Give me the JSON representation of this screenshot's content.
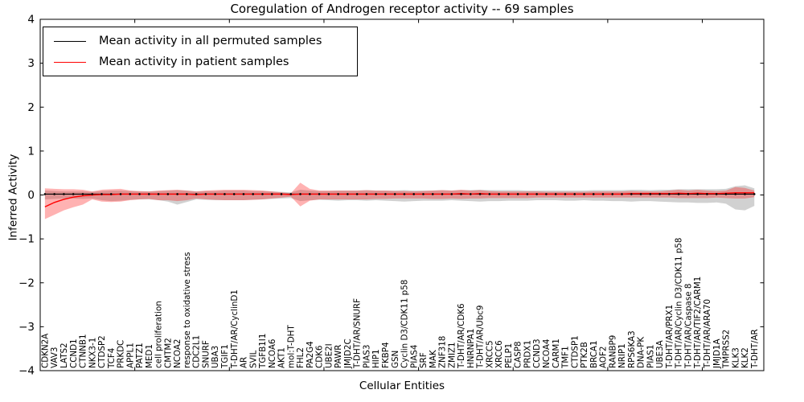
{
  "title": "Coregulation of Androgen receptor activity -- 69 samples",
  "axes": {
    "xlabel": "Cellular Entities",
    "ylabel": "Inferred Activity",
    "yticklabels": [
      "4",
      "3",
      "2",
      "1",
      "0",
      "−1",
      "−2",
      "−3",
      "−4"
    ]
  },
  "legend": {
    "items": [
      {
        "label": "Mean activity in all permuted samples",
        "color": "#000000"
      },
      {
        "label": "Mean activity in patient samples",
        "color": "#ff0000"
      }
    ]
  },
  "chart_data": {
    "type": "line",
    "title": "Coregulation of Androgen receptor activity -- 69 samples",
    "xlabel": "Cellular Entities",
    "ylabel": "Inferred Activity",
    "ylim": [
      -4,
      4
    ],
    "yticks": [
      4,
      3,
      2,
      1,
      0,
      -1,
      -2,
      -3,
      -4
    ],
    "xticks": [
      10,
      20,
      30,
      40,
      50,
      60,
      70
    ],
    "xmax": 76.5,
    "grid": false,
    "legend_position": "upper left",
    "categories": [
      "CDKN2A",
      "VAV3",
      "LATS2",
      "CCND1",
      "CTNNB1",
      "NKX3-1",
      "CTDSP2",
      "TCF4",
      "PRKDC",
      "APPL1",
      "PATZ1",
      "MED1",
      "cell proliferation",
      "CMTM2",
      "NCOA2",
      "response to oxidative stress",
      "CDC2L1",
      "SNURF",
      "UBA3",
      "TGIF1",
      "T-DHT/AR/CyclinD1",
      "AR",
      "SVIL",
      "TGFB1I1",
      "NCOA6",
      "AKT1",
      "mol:T-DHT",
      "FHL2",
      "PA2G4",
      "CDK6",
      "UBE2I",
      "PAWR",
      "JMJD2C",
      "T-DHT/AR/SNURF",
      "PIAS3",
      "HIP1",
      "FKBP4",
      "GSN",
      "Cyclin D3/CDK11 p58",
      "PIAS4",
      "SRF",
      "MAK",
      "ZNF318",
      "ZMIZ1",
      "T-DHT/AR/CDK6",
      "HNRNPA1",
      "T-DHT/AR/Ubc9",
      "XRCC5",
      "XRCC6",
      "PELP1",
      "CASP8",
      "PRDX1",
      "CCND3",
      "NCOA4",
      "CARM1",
      "TMF1",
      "CTDSP1",
      "PTK2B",
      "BRCA1",
      "AOF2",
      "RANBP9",
      "NRIP1",
      "RPS6KA3",
      "DNA-PK",
      "PIAS1",
      "UBE3A",
      "T-DHT/AR/PRX1",
      "T-DHT/AR/Cyclin D3/CDK11 p58",
      "T-DHT/AR/Caspase 8",
      "T-DHT/AR/TIF2/CARM1",
      "T-DHT/AR/ARA70",
      "JMJD1A",
      "TMPRSS2",
      "KLK3",
      "KLK2",
      "T-DHT/AR"
    ],
    "series": [
      {
        "name": "Mean activity in all permuted samples",
        "color": "#000000",
        "values": [
          0.02,
          0.02,
          0.02,
          0.02,
          0.02,
          0.02,
          0.02,
          0.02,
          0.02,
          0.02,
          0.02,
          0.02,
          0.02,
          0.02,
          0.02,
          0.02,
          0.02,
          0.02,
          0.02,
          0.02,
          0.02,
          0.02,
          0.02,
          0.02,
          0.02,
          0.02,
          0.02,
          0.02,
          0.02,
          0.02,
          0.02,
          0.02,
          0.02,
          0.02,
          0.02,
          0.02,
          0.02,
          0.02,
          0.02,
          0.02,
          0.02,
          0.02,
          0.02,
          0.02,
          0.02,
          0.02,
          0.02,
          0.02,
          0.02,
          0.02,
          0.02,
          0.02,
          0.02,
          0.02,
          0.02,
          0.02,
          0.02,
          0.02,
          0.02,
          0.02,
          0.02,
          0.02,
          0.02,
          0.02,
          0.02,
          0.02,
          0.02,
          0.02,
          0.02,
          0.02,
          0.02,
          0.02,
          0.02,
          0.02,
          0.02,
          0.02
        ]
      },
      {
        "name": "Mean activity in patient samples",
        "color": "#ff0000",
        "values": [
          -0.27,
          -0.17,
          -0.1,
          -0.05,
          -0.02,
          0.0,
          0.01,
          0.01,
          0.02,
          0.02,
          0.02,
          0.02,
          0.02,
          0.02,
          0.02,
          0.02,
          0.01,
          0.02,
          0.02,
          0.02,
          0.02,
          0.02,
          0.02,
          0.02,
          0.02,
          0.02,
          0.01,
          0.02,
          0.02,
          0.02,
          0.02,
          0.02,
          0.02,
          0.02,
          0.02,
          0.02,
          0.02,
          0.02,
          0.02,
          0.02,
          0.02,
          0.02,
          0.02,
          0.02,
          0.03,
          0.02,
          0.03,
          0.02,
          0.02,
          0.02,
          0.02,
          0.02,
          0.02,
          0.02,
          0.02,
          0.02,
          0.02,
          0.02,
          0.02,
          0.02,
          0.02,
          0.02,
          0.03,
          0.03,
          0.03,
          0.03,
          0.03,
          0.04,
          0.03,
          0.04,
          0.03,
          0.03,
          0.04,
          0.05,
          0.05,
          0.05
        ]
      }
    ],
    "bands": [
      {
        "name": "permuted-band",
        "color": "#999999",
        "opacity": 0.45,
        "upper": [
          0.1,
          0.09,
          0.08,
          0.08,
          0.08,
          0.07,
          0.09,
          0.1,
          0.1,
          0.09,
          0.08,
          0.08,
          0.09,
          0.1,
          0.11,
          0.1,
          0.08,
          0.09,
          0.09,
          0.1,
          0.1,
          0.1,
          0.09,
          0.09,
          0.08,
          0.07,
          0.06,
          0.12,
          0.1,
          0.09,
          0.09,
          0.1,
          0.1,
          0.1,
          0.11,
          0.1,
          0.1,
          0.1,
          0.11,
          0.1,
          0.1,
          0.1,
          0.11,
          0.1,
          0.11,
          0.11,
          0.12,
          0.11,
          0.11,
          0.11,
          0.11,
          0.1,
          0.1,
          0.1,
          0.1,
          0.1,
          0.1,
          0.1,
          0.11,
          0.11,
          0.11,
          0.11,
          0.12,
          0.12,
          0.11,
          0.12,
          0.12,
          0.13,
          0.13,
          0.13,
          0.13,
          0.13,
          0.14,
          0.2,
          0.22,
          0.15
        ],
        "lower": [
          -0.1,
          -0.09,
          -0.08,
          -0.08,
          -0.09,
          -0.08,
          -0.12,
          -0.14,
          -0.13,
          -0.11,
          -0.1,
          -0.1,
          -0.12,
          -0.15,
          -0.22,
          -0.16,
          -0.1,
          -0.11,
          -0.12,
          -0.12,
          -0.12,
          -0.12,
          -0.11,
          -0.1,
          -0.09,
          -0.08,
          -0.07,
          -0.14,
          -0.12,
          -0.11,
          -0.12,
          -0.13,
          -0.12,
          -0.12,
          -0.13,
          -0.12,
          -0.13,
          -0.14,
          -0.15,
          -0.14,
          -0.13,
          -0.13,
          -0.13,
          -0.12,
          -0.13,
          -0.14,
          -0.15,
          -0.14,
          -0.14,
          -0.13,
          -0.13,
          -0.13,
          -0.12,
          -0.12,
          -0.12,
          -0.13,
          -0.13,
          -0.12,
          -0.13,
          -0.13,
          -0.14,
          -0.14,
          -0.15,
          -0.14,
          -0.14,
          -0.15,
          -0.16,
          -0.17,
          -0.17,
          -0.18,
          -0.18,
          -0.17,
          -0.2,
          -0.33,
          -0.35,
          -0.25
        ]
      },
      {
        "name": "patient-band",
        "color": "#ff0000",
        "opacity": 0.3,
        "upper": [
          0.15,
          0.14,
          0.13,
          0.13,
          0.12,
          0.08,
          0.12,
          0.13,
          0.14,
          0.1,
          0.09,
          0.08,
          0.1,
          0.11,
          0.12,
          0.1,
          0.08,
          0.1,
          0.11,
          0.12,
          0.12,
          0.12,
          0.11,
          0.1,
          0.08,
          0.06,
          0.04,
          0.28,
          0.14,
          0.1,
          0.1,
          0.1,
          0.1,
          0.1,
          0.11,
          0.1,
          0.1,
          0.09,
          0.09,
          0.08,
          0.09,
          0.1,
          0.11,
          0.1,
          0.12,
          0.1,
          0.11,
          0.09,
          0.08,
          0.08,
          0.08,
          0.08,
          0.08,
          0.07,
          0.07,
          0.07,
          0.07,
          0.07,
          0.08,
          0.08,
          0.08,
          0.08,
          0.09,
          0.08,
          0.08,
          0.08,
          0.1,
          0.12,
          0.1,
          0.12,
          0.1,
          0.09,
          0.1,
          0.18,
          0.16,
          0.1
        ],
        "lower": [
          -0.55,
          -0.45,
          -0.35,
          -0.28,
          -0.22,
          -0.1,
          -0.15,
          -0.16,
          -0.15,
          -0.12,
          -0.1,
          -0.09,
          -0.12,
          -0.12,
          -0.14,
          -0.12,
          -0.08,
          -0.1,
          -0.11,
          -0.12,
          -0.12,
          -0.12,
          -0.11,
          -0.1,
          -0.08,
          -0.06,
          -0.04,
          -0.26,
          -0.13,
          -0.1,
          -0.1,
          -0.1,
          -0.1,
          -0.1,
          -0.1,
          -0.09,
          -0.09,
          -0.08,
          -0.08,
          -0.08,
          -0.08,
          -0.09,
          -0.09,
          -0.08,
          -0.09,
          -0.08,
          -0.08,
          -0.07,
          -0.07,
          -0.07,
          -0.07,
          -0.07,
          -0.06,
          -0.06,
          -0.06,
          -0.06,
          -0.06,
          -0.06,
          -0.06,
          -0.06,
          -0.06,
          -0.06,
          -0.06,
          -0.06,
          -0.06,
          -0.06,
          -0.06,
          -0.07,
          -0.07,
          -0.07,
          -0.07,
          -0.06,
          -0.07,
          -0.08,
          -0.08,
          -0.05
        ]
      }
    ]
  }
}
